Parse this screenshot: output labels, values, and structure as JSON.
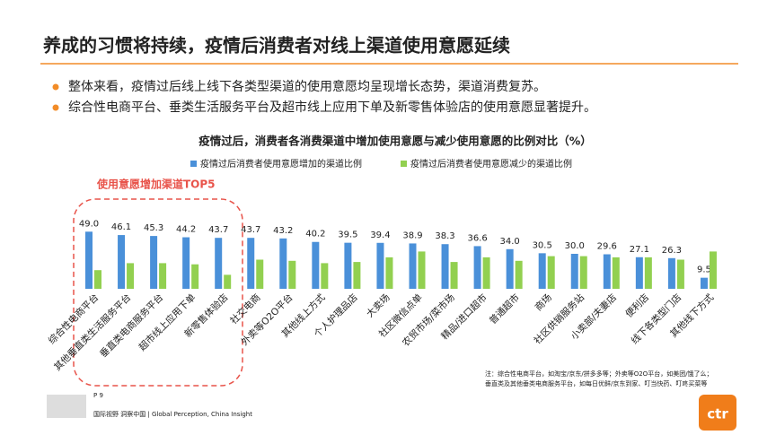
{
  "header": {
    "title": "养成的习惯将持续，疫情后消费者对线上渠道使用意愿延续"
  },
  "bullets": [
    "整体来看，疫情过后线上线下各类型渠道的使用意愿均呈现增长态势，渠道消费复苏。",
    "综合性电商平台、垂类生活服务平台及超市线上应用下单及新零售体验店的使用意愿显著提升。"
  ],
  "highlight": "使用意愿增加渠道TOP5",
  "note": [
    "注：综合性电商平台，如淘宝/京东/拼多多等；外卖等O2O平台，如美团/饿了么；",
    "垂直类及其他垂类电商服务平台，如每日优鲜/京东到家、叮当快药、叮咚买菜等"
  ],
  "footer": {
    "page": "P 9",
    "slogan": "国际视野  洞察中国 | Global Perception, China Insight",
    "logo": "ctr"
  },
  "chart_data": {
    "type": "bar",
    "title": "疫情过后，消费者各消费渠道中增加使用意愿与减少使用意愿的比例对比（%）",
    "categories": [
      "综合性电商平台",
      "其他垂直类生活服务平台",
      "垂直类电商服务平台",
      "超市线上应用下单",
      "新零售体验店",
      "社交电商",
      "外卖等O2O平台",
      "其他线上方式",
      "个人护理品店",
      "大卖场",
      "社区微信点单",
      "农贸市场/菜市场",
      "精品/进口超市",
      "普通超市",
      "商场",
      "社区供销服务站",
      "小卖部/夫妻店",
      "便利店",
      "线下各类型门店",
      "其他线下方式"
    ],
    "series": [
      {
        "name": "疫情过后消费者使用意愿增加的渠道比例",
        "color": "#4a90d9",
        "values": [
          49.0,
          46.1,
          45.3,
          44.2,
          43.7,
          43.7,
          43.2,
          40.2,
          39.5,
          39.4,
          38.9,
          38.3,
          36.6,
          34.0,
          30.5,
          30.0,
          29.6,
          27.1,
          26.3,
          9.5
        ],
        "value_labels": [
          "49.0",
          "46.1",
          "45.3",
          "44.2",
          "43.7",
          "43.7",
          "43.2",
          "40.2",
          "39.5",
          "39.4",
          "38.9",
          "38.3",
          "36.6",
          "34.0",
          "30.5",
          "30.0",
          "29.6",
          "27.1",
          "26.3",
          "9.5"
        ]
      },
      {
        "name": "疫情过后消费者使用意愿减少的渠道比例",
        "color": "#92d050",
        "values": [
          16,
          22,
          22,
          21,
          12,
          25,
          24,
          22,
          23,
          27,
          32,
          23,
          27,
          24,
          28,
          28,
          27,
          27,
          25,
          32
        ]
      }
    ],
    "ylim": [
      0,
      50
    ]
  }
}
